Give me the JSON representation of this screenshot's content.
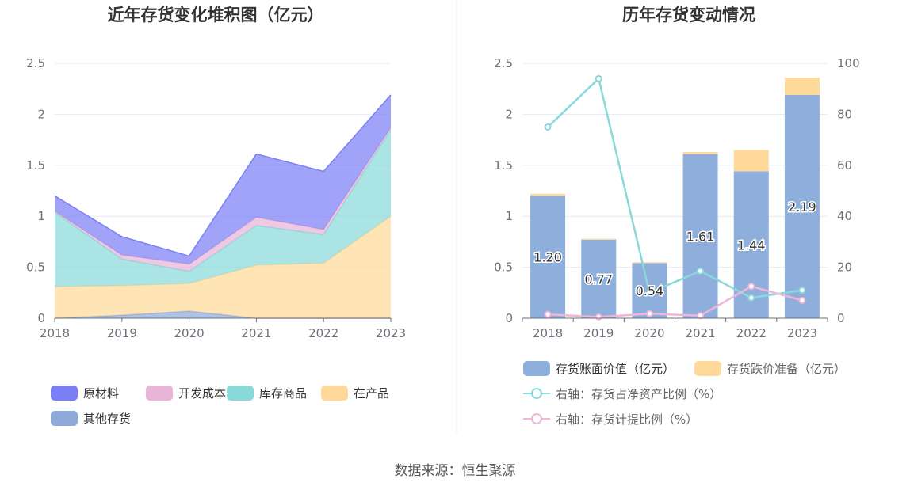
{
  "source_text": "数据来源：恒生聚源",
  "chart_data": [
    {
      "type": "area",
      "stacked": true,
      "title": "近年存货变化堆积图（亿元）",
      "x": [
        "2018",
        "2019",
        "2020",
        "2021",
        "2022",
        "2023"
      ],
      "ylim": [
        0,
        2.5
      ],
      "yticks": [
        "0",
        "0.5",
        "1",
        "1.5",
        "2",
        "2.5"
      ],
      "grid": true,
      "legend_position": "bottom",
      "series": [
        {
          "name": "其他存货",
          "color": "#8eaadb",
          "values": [
            0.0,
            0.03,
            0.07,
            0.0,
            0.0,
            0.0
          ]
        },
        {
          "name": "在产品",
          "color": "#ffd99a",
          "values": [
            0.31,
            0.29,
            0.27,
            0.52,
            0.54,
            1.0
          ]
        },
        {
          "name": "库存商品",
          "color": "#8ad9da",
          "values": [
            0.73,
            0.26,
            0.12,
            0.39,
            0.28,
            0.85
          ]
        },
        {
          "name": "开发成本",
          "color": "#e8b4d8",
          "values": [
            0.01,
            0.04,
            0.07,
            0.08,
            0.05,
            0.02
          ]
        },
        {
          "name": "原材料",
          "color": "#7b7ff5",
          "values": [
            0.15,
            0.18,
            0.08,
            0.62,
            0.57,
            0.32
          ]
        }
      ],
      "legend_order": [
        "原材料",
        "开发成本",
        "库存商品",
        "在产品",
        "其他存货"
      ]
    },
    {
      "type": "bar",
      "stacked": true,
      "title": "历年存货变动情况",
      "x": [
        "2018",
        "2019",
        "2020",
        "2021",
        "2022",
        "2023"
      ],
      "ylim": [
        0,
        2.5
      ],
      "yticks": [
        "0",
        "0.5",
        "1",
        "1.5",
        "2",
        "2.5"
      ],
      "y2lim": [
        0,
        100
      ],
      "y2ticks": [
        "0",
        "20",
        "40",
        "60",
        "80",
        "100"
      ],
      "grid": true,
      "legend_position": "bottom",
      "bars": [
        {
          "name": "存货账面价值（亿元）",
          "color": "#8eaedb",
          "values": [
            1.2,
            0.77,
            0.54,
            1.61,
            1.44,
            2.19
          ],
          "labels": [
            "1.20",
            "0.77",
            "0.54",
            "1.61",
            "1.44",
            "2.19"
          ]
        },
        {
          "name": "存货跌价准备（亿元）",
          "color": "#ffd99a",
          "values": [
            0.02,
            0.01,
            0.01,
            0.02,
            0.21,
            0.17
          ]
        }
      ],
      "lines": [
        {
          "name": "右轴：存货占净资产比例（%）",
          "color": "#8ad9da",
          "axis": "right",
          "values": [
            75.0,
            94.0,
            10.0,
            18.5,
            8.0,
            11.0
          ]
        },
        {
          "name": "右轴：存货计提比例（%）",
          "color": "#f0b6d8",
          "axis": "right",
          "values": [
            1.5,
            0.5,
            1.8,
            1.0,
            12.5,
            7.0
          ]
        }
      ]
    }
  ]
}
